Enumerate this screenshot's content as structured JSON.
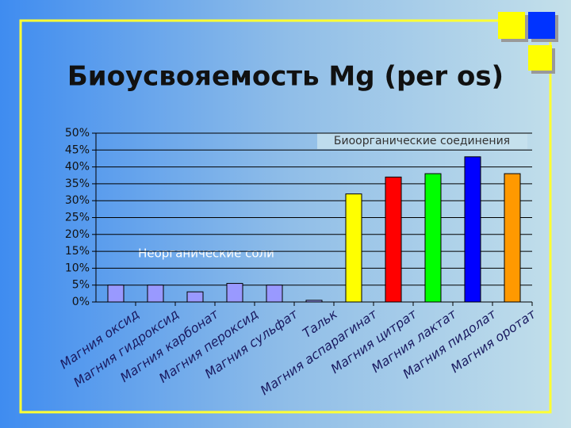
{
  "chart_data": {
    "type": "bar",
    "title": "Биоусвояемость Mg (per os)",
    "annotations": [
      "Неорганические соли",
      "Биоорганические соединения"
    ],
    "categories": [
      "Магния оксид",
      "Магния гидроксид",
      "Магния карбонат",
      "Магния пероксид",
      "Магния сульфат",
      "Тальк",
      "Магния аспарагинат",
      "Магния цитрат",
      "Магния лактат",
      "Магния пидолат",
      "Магния оротат"
    ],
    "values": [
      5,
      5,
      3,
      5.5,
      5,
      0.5,
      32,
      37,
      38,
      43,
      38
    ],
    "colors": [
      "#9999ff",
      "#9999ff",
      "#9999ff",
      "#9999ff",
      "#9999ff",
      "#9999ff",
      "#ffff00",
      "#ff0000",
      "#00ff00",
      "#0000ff",
      "#ff9900"
    ],
    "ylim": [
      0,
      50
    ],
    "yticks": [
      {
        "value": 0,
        "label": "0%"
      },
      {
        "value": 5,
        "label": "5%"
      },
      {
        "value": 10,
        "label": "10%"
      },
      {
        "value": 15,
        "label": "15%"
      },
      {
        "value": 20,
        "label": "20%"
      },
      {
        "value": 25,
        "label": "25%"
      },
      {
        "value": 30,
        "label": "30%"
      },
      {
        "value": 35,
        "label": "35%"
      },
      {
        "value": 40,
        "label": "40%"
      },
      {
        "value": 45,
        "label": "45%"
      },
      {
        "value": 50,
        "label": "50%"
      }
    ],
    "grid": true
  }
}
